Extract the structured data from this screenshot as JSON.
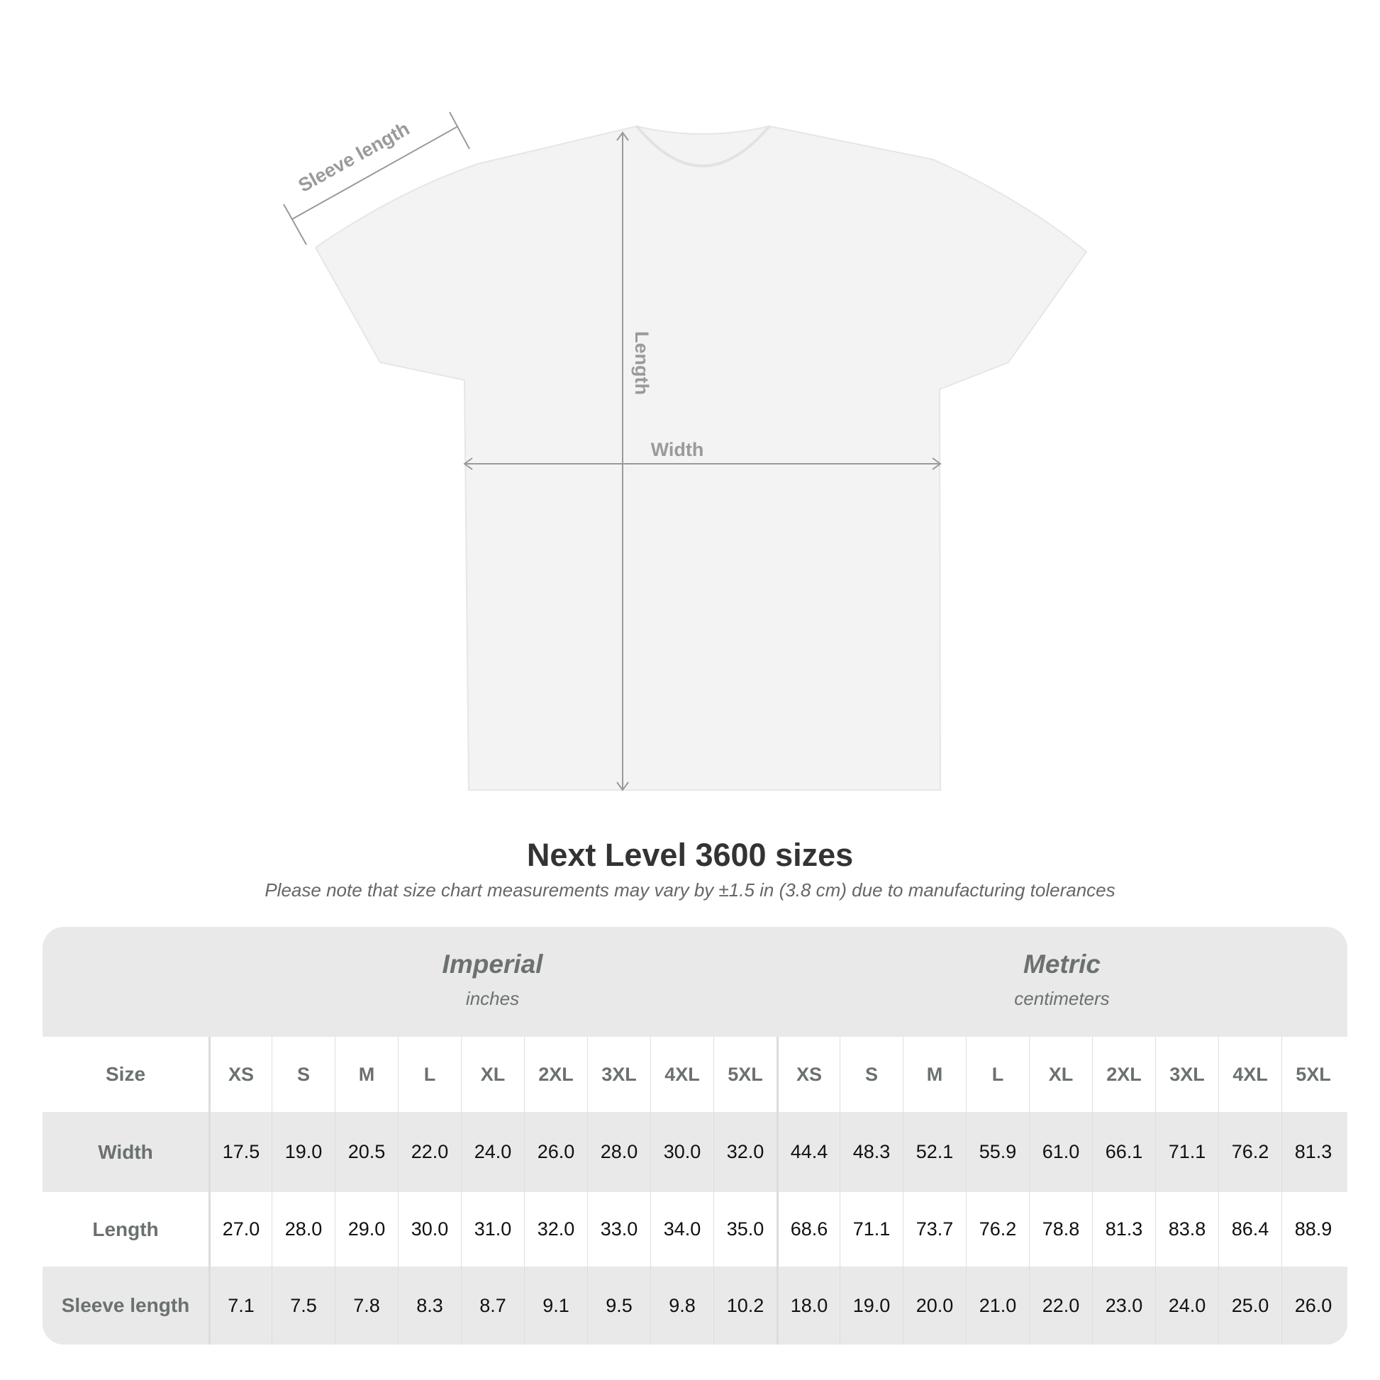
{
  "diagram": {
    "sleeve_label": "Sleeve length",
    "length_label": "Length",
    "width_label": "Width"
  },
  "title": "Next Level 3600 sizes",
  "subtitle": "Please note that size chart measurements may vary by ±1.5 in (3.8 cm) due to manufacturing tolerances",
  "table": {
    "imperial": {
      "name": "Imperial",
      "unit": "inches"
    },
    "metric": {
      "name": "Metric",
      "unit": "centimeters"
    },
    "size_label": "Size",
    "sizes": [
      "XS",
      "S",
      "M",
      "L",
      "XL",
      "2XL",
      "3XL",
      "4XL",
      "5XL"
    ],
    "rows": [
      {
        "label": "Width",
        "imperial": [
          "17.5",
          "19.0",
          "20.5",
          "22.0",
          "24.0",
          "26.0",
          "28.0",
          "30.0",
          "32.0"
        ],
        "metric": [
          "44.4",
          "48.3",
          "52.1",
          "55.9",
          "61.0",
          "66.1",
          "71.1",
          "76.2",
          "81.3"
        ]
      },
      {
        "label": "Length",
        "imperial": [
          "27.0",
          "28.0",
          "29.0",
          "30.0",
          "31.0",
          "32.0",
          "33.0",
          "34.0",
          "35.0"
        ],
        "metric": [
          "68.6",
          "71.1",
          "73.7",
          "76.2",
          "78.8",
          "81.3",
          "83.8",
          "86.4",
          "88.9"
        ]
      },
      {
        "label": "Sleeve length",
        "imperial": [
          "7.1",
          "7.5",
          "7.8",
          "8.3",
          "8.7",
          "9.1",
          "9.5",
          "9.8",
          "10.2"
        ],
        "metric": [
          "18.0",
          "19.0",
          "20.0",
          "21.0",
          "22.0",
          "23.0",
          "24.0",
          "25.0",
          "26.0"
        ]
      }
    ]
  },
  "colors": {
    "measure_line": "#9a9a9a",
    "table_bg": "#e9e9e9",
    "header_text": "#6b7070"
  }
}
